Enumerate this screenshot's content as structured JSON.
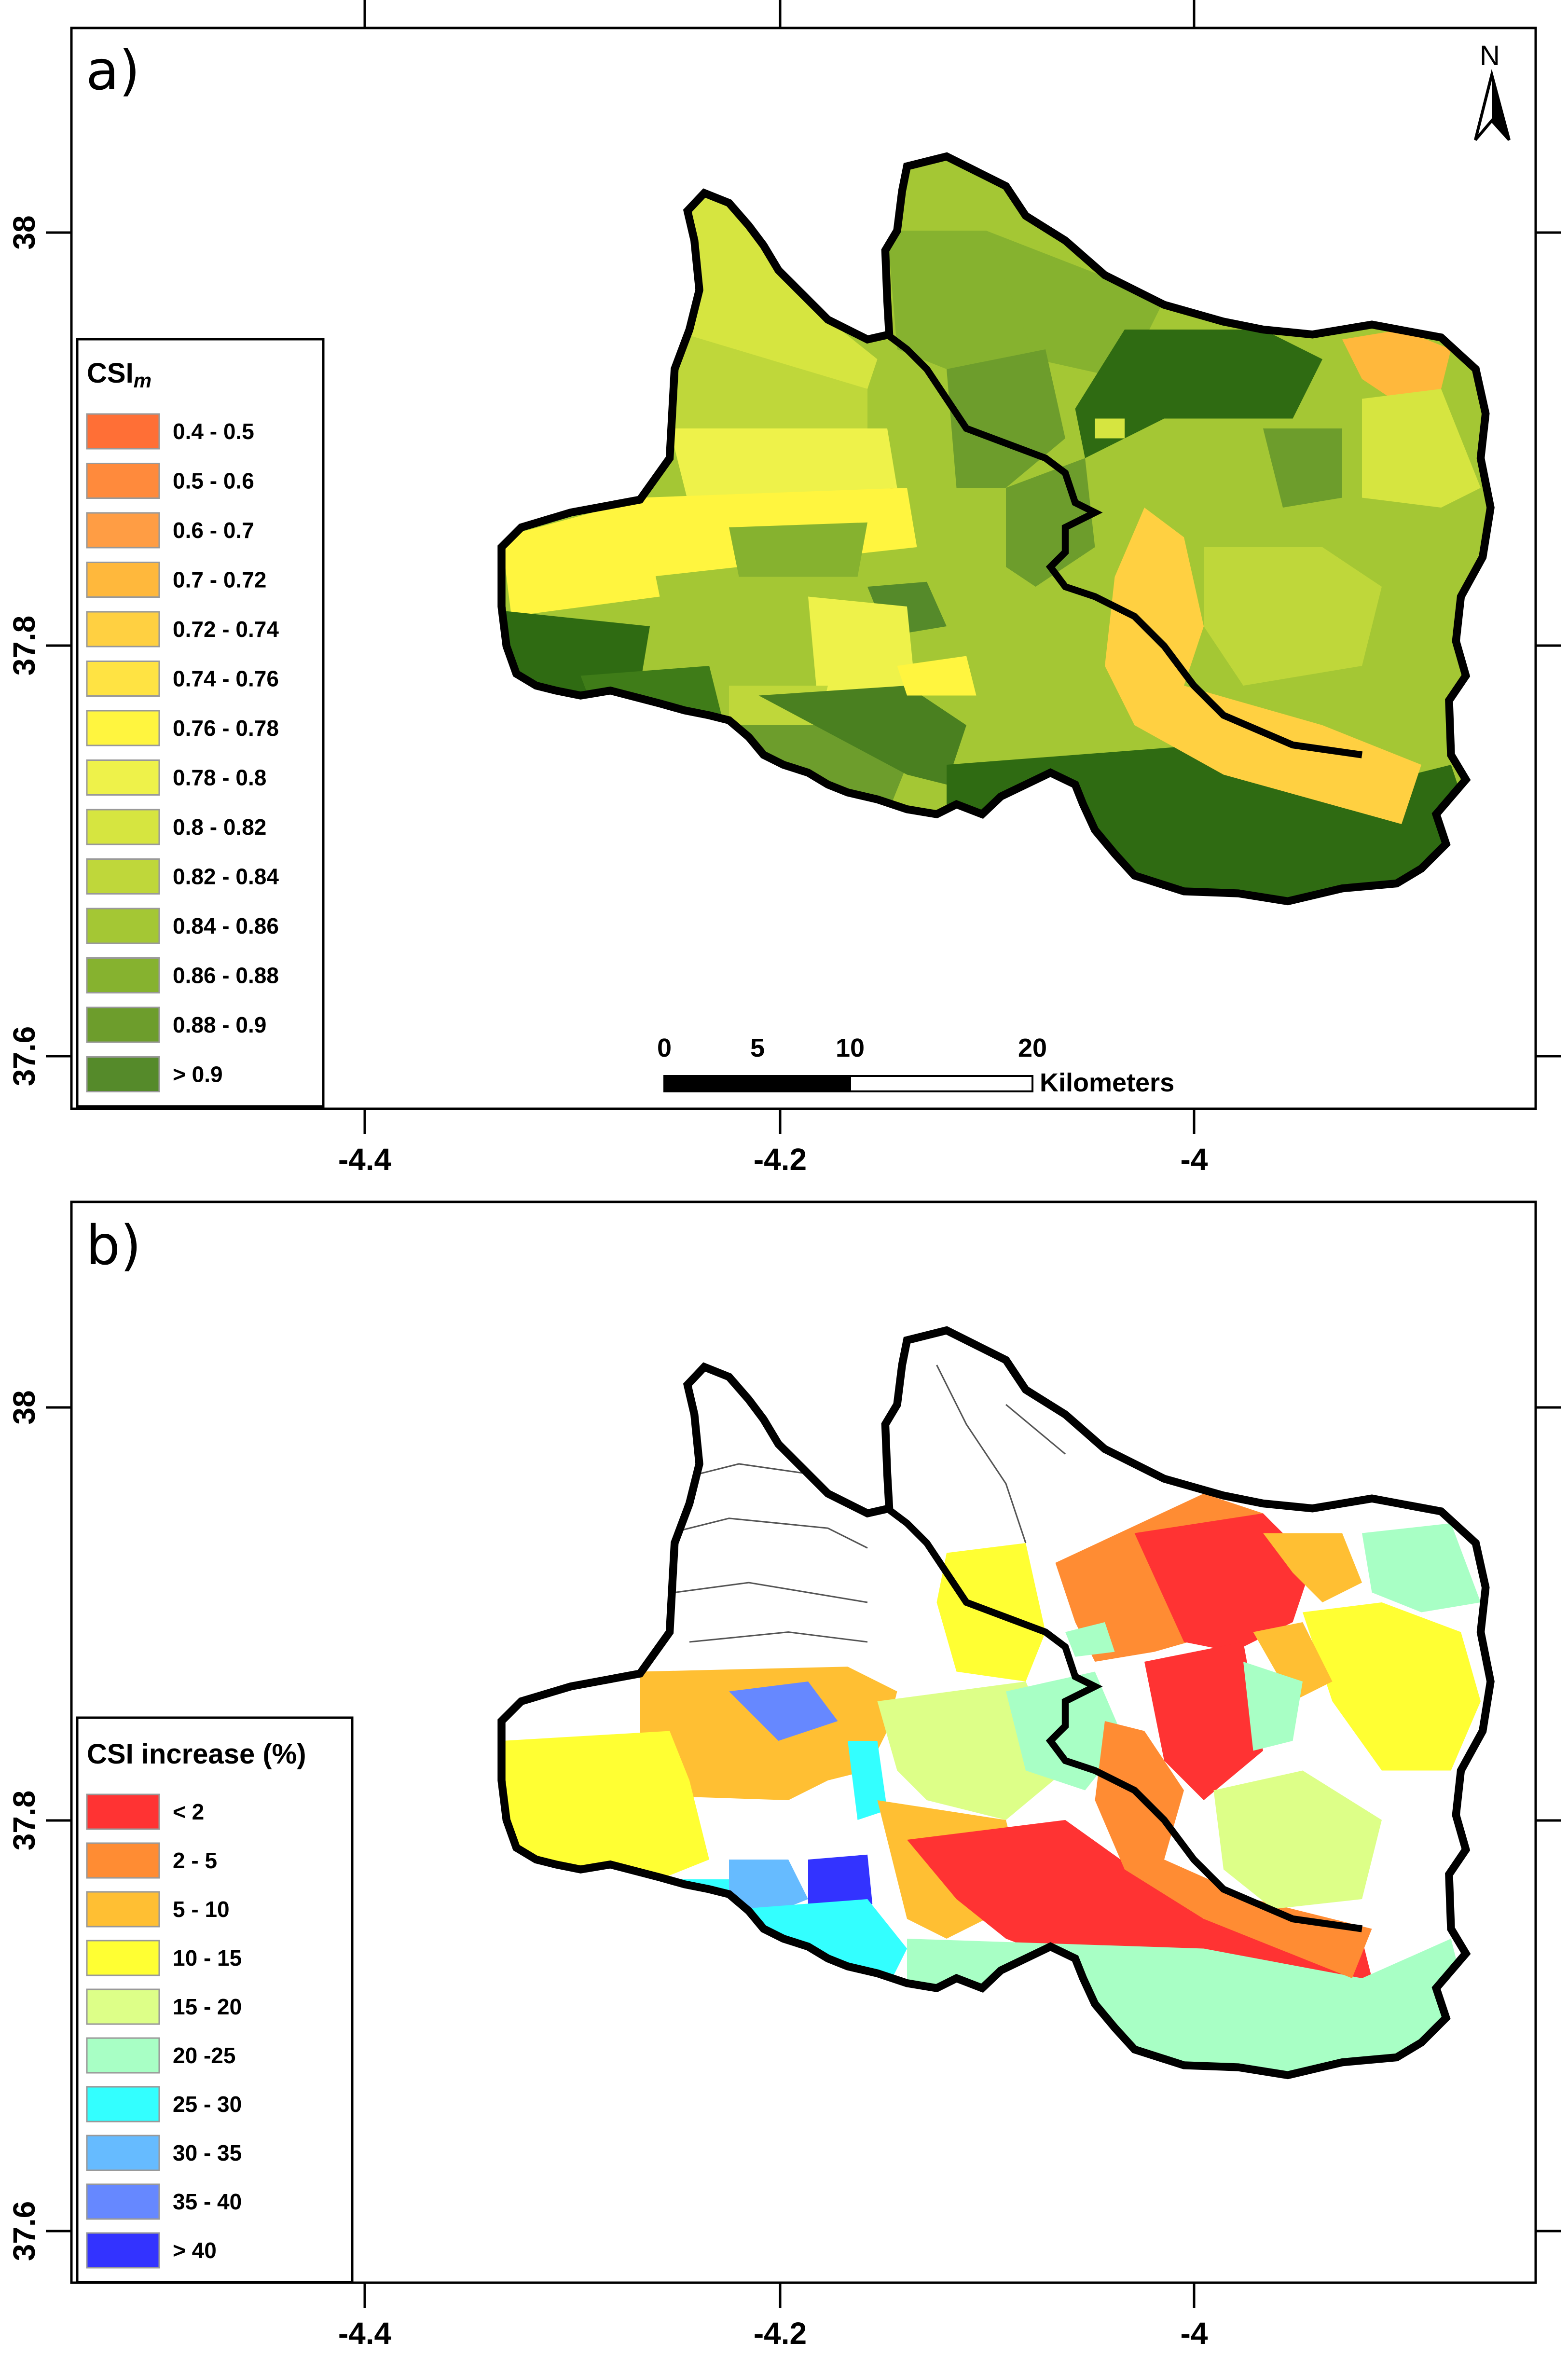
{
  "panels": [
    {
      "letter": "a)",
      "legend_title_base": "CSI",
      "legend_title_sub": "m",
      "legend": [
        {
          "label": "0.4 - 0.5",
          "color": "#ff6f36"
        },
        {
          "label": "0.5 - 0.6",
          "color": "#ff8a3c"
        },
        {
          "label": "0.6 - 0.7",
          "color": "#ff9d44"
        },
        {
          "label": "0.7 - 0.72",
          "color": "#ffb83c"
        },
        {
          "label": "0.72 - 0.74",
          "color": "#ffd041"
        },
        {
          "label": "0.74 - 0.76",
          "color": "#ffe343"
        },
        {
          "label": "0.76 - 0.78",
          "color": "#fff53f"
        },
        {
          "label": "0.78 - 0.8",
          "color": "#eef24a"
        },
        {
          "label": "0.8 - 0.82",
          "color": "#d6e540"
        },
        {
          "label": "0.82 - 0.84",
          "color": "#bfd73a"
        },
        {
          "label": "0.84 - 0.86",
          "color": "#a4c734"
        },
        {
          "label": "0.86 - 0.88",
          "color": "#86b22f"
        },
        {
          "label": "0.88 - 0.9",
          "color": "#6d9d2c"
        },
        {
          "label": "> 0.9",
          "color": "#558a2a"
        }
      ],
      "scale_bar": {
        "labels": [
          "0",
          "5",
          "10",
          "20"
        ],
        "unit": "Kilometers"
      },
      "north_label": "N"
    },
    {
      "letter": "b)",
      "legend_title": "CSI increase (%)",
      "legend": [
        {
          "label": "< 2",
          "color": "#ff3333"
        },
        {
          "label": "2 - 5",
          "color": "#ff8c33"
        },
        {
          "label": "5 - 10",
          "color": "#ffbf33"
        },
        {
          "label": "10 - 15",
          "color": "#ffff33"
        },
        {
          "label": "15 - 20",
          "color": "#ddff88"
        },
        {
          "label": "20  -25",
          "color": "#a8ffc5"
        },
        {
          "label": "25 - 30",
          "color": "#33ffff"
        },
        {
          "label": "30 - 35",
          "color": "#66bbff"
        },
        {
          "label": "35 - 40",
          "color": "#6688ff"
        },
        {
          "label": "> 40",
          "color": "#3333ff"
        }
      ]
    }
  ],
  "axes": {
    "x_ticks": [
      "-4.4",
      "-4.2",
      "-4"
    ],
    "y_ticks": [
      "38",
      "37.8",
      "37.6"
    ]
  }
}
